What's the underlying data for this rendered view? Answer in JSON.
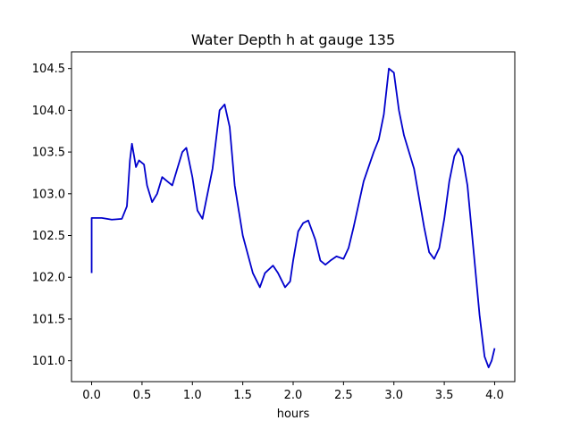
{
  "chart_data": {
    "type": "line",
    "title": "Water Depth h at gauge 135",
    "xlabel": "hours",
    "ylabel": "",
    "xlim": [
      -0.2,
      4.2
    ],
    "ylim": [
      100.75,
      104.7
    ],
    "xticks": [
      0.0,
      0.5,
      1.0,
      1.5,
      2.0,
      2.5,
      3.0,
      3.5,
      4.0
    ],
    "xtick_labels": [
      "0.0",
      "0.5",
      "1.0",
      "1.5",
      "2.0",
      "2.5",
      "3.0",
      "3.5",
      "4.0"
    ],
    "yticks": [
      101.0,
      101.5,
      102.0,
      102.5,
      103.0,
      103.5,
      104.0,
      104.5
    ],
    "ytick_labels": [
      "101.0",
      "101.5",
      "102.0",
      "102.5",
      "103.0",
      "103.5",
      "104.0",
      "104.5"
    ],
    "grid": false,
    "series": [
      {
        "color": "#0000cc",
        "x": [
          0.0,
          0.0,
          0.1,
          0.2,
          0.3,
          0.35,
          0.38,
          0.4,
          0.44,
          0.47,
          0.52,
          0.55,
          0.6,
          0.65,
          0.7,
          0.75,
          0.8,
          0.85,
          0.9,
          0.94,
          1.0,
          1.05,
          1.1,
          1.2,
          1.27,
          1.32,
          1.37,
          1.42,
          1.5,
          1.6,
          1.67,
          1.72,
          1.8,
          1.85,
          1.92,
          1.97,
          2.0,
          2.05,
          2.1,
          2.15,
          2.22,
          2.27,
          2.32,
          2.37,
          2.43,
          2.5,
          2.55,
          2.6,
          2.7,
          2.8,
          2.85,
          2.9,
          2.95,
          3.0,
          3.05,
          3.1,
          3.2,
          3.3,
          3.35,
          3.4,
          3.45,
          3.5,
          3.55,
          3.6,
          3.64,
          3.68,
          3.73,
          3.8,
          3.85,
          3.9,
          3.94,
          3.97,
          4.0
        ],
        "y": [
          102.05,
          102.71,
          102.71,
          102.69,
          102.7,
          102.85,
          103.4,
          103.6,
          103.32,
          103.4,
          103.35,
          103.1,
          102.9,
          103.0,
          103.2,
          103.15,
          103.1,
          103.3,
          103.5,
          103.55,
          103.2,
          102.8,
          102.7,
          103.3,
          104.0,
          104.07,
          103.8,
          103.1,
          102.5,
          102.05,
          101.88,
          102.05,
          102.14,
          102.05,
          101.88,
          101.95,
          102.2,
          102.55,
          102.65,
          102.68,
          102.45,
          102.2,
          102.15,
          102.2,
          102.25,
          102.22,
          102.35,
          102.6,
          103.15,
          103.5,
          103.65,
          103.95,
          104.5,
          104.45,
          104.0,
          103.7,
          103.3,
          102.6,
          102.3,
          102.22,
          102.35,
          102.7,
          103.15,
          103.45,
          103.54,
          103.45,
          103.1,
          102.2,
          101.55,
          101.05,
          100.92,
          101.0,
          101.15
        ]
      }
    ]
  }
}
